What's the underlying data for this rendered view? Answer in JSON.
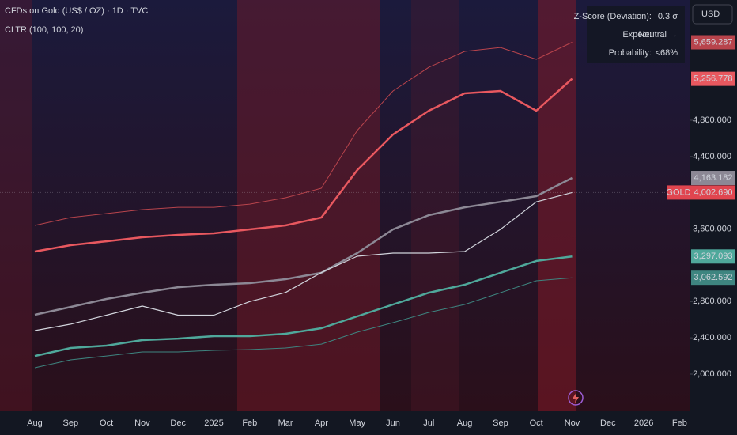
{
  "chart_data": {
    "type": "line",
    "title": "CFDs on Gold (US$ / OZ) · 1D · TVC",
    "subtitle": "CLTR (100, 100, 20)",
    "currency": "USD",
    "categories": [
      "Aug",
      "Sep",
      "Oct",
      "Nov",
      "Dec",
      "2025",
      "Feb",
      "Mar",
      "Apr",
      "May",
      "Jun",
      "Jul",
      "Aug",
      "Sep",
      "Oct",
      "Nov",
      "Dec",
      "2026",
      "Feb"
    ],
    "series": [
      {
        "color": "#b8444c",
        "width": 1,
        "values": [
          3640,
          3727,
          3771,
          3814,
          3840,
          3840,
          3875,
          3945,
          4050,
          4687,
          5123,
          5384,
          5559,
          5602,
          5472,
          5659.287,
          null,
          null,
          null
        ],
        "last": {
          "value": 5659.287,
          "label": "5,659.287"
        }
      },
      {
        "color": "#e8585f",
        "width": 2.5,
        "values": [
          3352,
          3422,
          3465,
          3509,
          3535,
          3553,
          3596,
          3640,
          3727,
          4250,
          4643,
          4905,
          5097,
          5123,
          4905,
          5256.778,
          null,
          null,
          null
        ],
        "last": {
          "value": 5256.778,
          "label": "5,256.778"
        }
      },
      {
        "color": "#8c8895",
        "width": 2.5,
        "values": [
          2654,
          2741,
          2829,
          2898,
          2959,
          2986,
          3003,
          3047,
          3117,
          3335,
          3596,
          3753,
          3840,
          3900,
          3963,
          4163.182,
          null,
          null,
          null
        ],
        "last": {
          "value": 4163.182,
          "label": "4,163.182"
        }
      },
      {
        "name": "GOLD",
        "color": "#d1d4dc",
        "width": 1.2,
        "values": [
          2480,
          2550,
          2650,
          2750,
          2650,
          2650,
          2800,
          2900,
          3120,
          3300,
          3335,
          3335,
          3352,
          3596,
          3900,
          4002.69,
          null,
          null,
          null
        ],
        "last": {
          "value": 4002.69,
          "label": "4,002.690"
        }
      },
      {
        "color": "#4fa89b",
        "width": 2.5,
        "values": [
          2200,
          2288,
          2314,
          2375,
          2392,
          2419,
          2419,
          2445,
          2506,
          2637,
          2768,
          2898,
          2986,
          3117,
          3248,
          3297.093,
          null,
          null,
          null
        ],
        "last": {
          "value": 3297.093,
          "label": "3,297.093"
        }
      },
      {
        "color": "#3e8580",
        "width": 1,
        "values": [
          2070,
          2157,
          2200,
          2244,
          2244,
          2262,
          2270,
          2288,
          2331,
          2462,
          2567,
          2680,
          2768,
          2898,
          3029,
          3062.592,
          null,
          null,
          null
        ],
        "last": {
          "value": 3062.592,
          "label": "3,062.592"
        }
      }
    ],
    "ylim": [
      1590,
      6126
    ],
    "yticks": [
      {
        "value": 2000,
        "label": "2,000.000"
      },
      {
        "value": 2400,
        "label": "2,400.000"
      },
      {
        "value": 2800,
        "label": "2,800.000"
      },
      {
        "value": 3600,
        "label": "3,600.000"
      },
      {
        "value": 4400,
        "label": "4,400.000"
      },
      {
        "value": 4800,
        "label": "4,800.000"
      }
    ],
    "grid": false,
    "table": [
      [
        "Z-Score (Deviation):",
        "0.3 σ"
      ],
      [
        "Expect:",
        "Neutral →"
      ],
      [
        "Probability:",
        "<68%"
      ]
    ]
  }
}
